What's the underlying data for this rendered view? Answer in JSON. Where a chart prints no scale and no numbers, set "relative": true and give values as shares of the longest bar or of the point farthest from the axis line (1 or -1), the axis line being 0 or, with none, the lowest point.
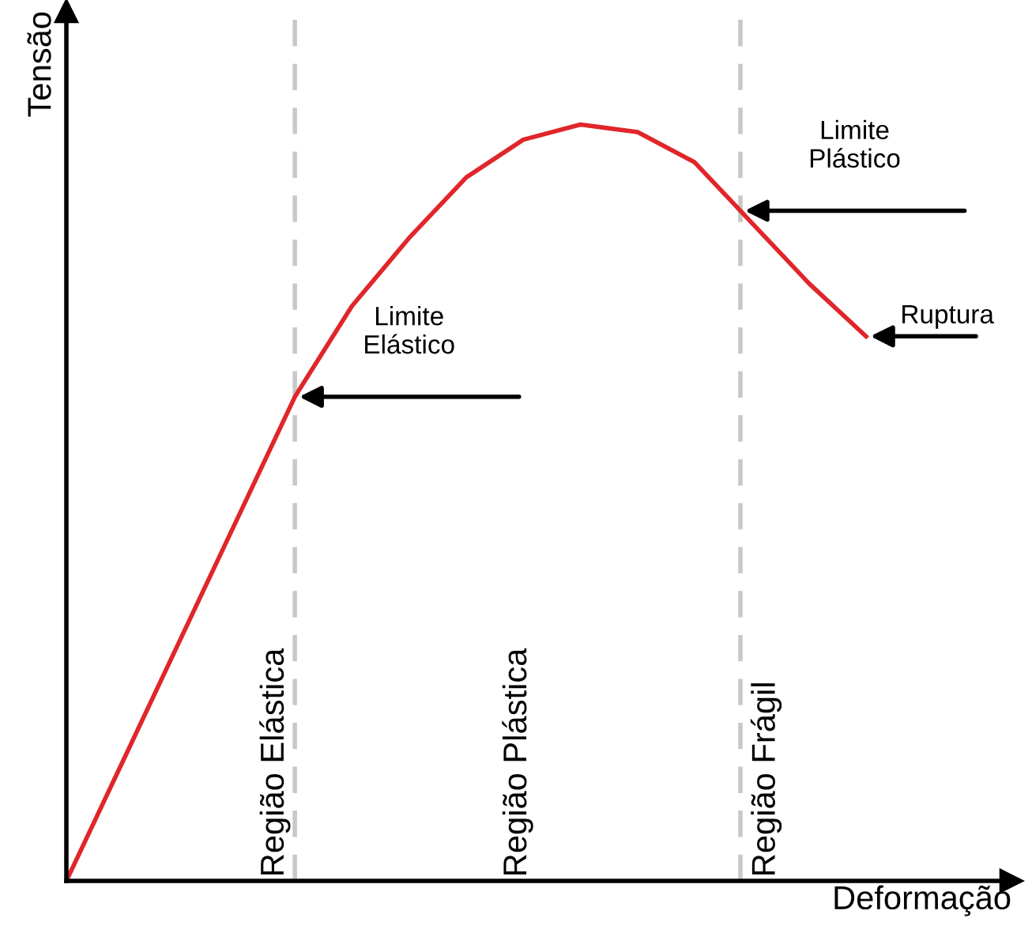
{
  "chart_data": {
    "type": "line",
    "relative": true,
    "xlabel": "Deformação",
    "ylabel": "Tensão",
    "categories": [
      null,
      null,
      null,
      null,
      null,
      null,
      null,
      null,
      null,
      null,
      null,
      null,
      null,
      null,
      null
    ],
    "series": [
      {
        "color": "#e0262a",
        "values": [
          0,
          0.16,
          0.32,
          0.48,
          0.64,
          0.76,
          0.85,
          0.93,
          0.98,
          1.0,
          0.99,
          0.95,
          0.87,
          0.79,
          0.72
        ]
      }
    ],
    "annotations": [
      "Limite\nElástico",
      "Limite\nPlástico",
      "Ruptura",
      "Região Elástica",
      "Região Plástica",
      "Região Frágil"
    ],
    "marker": "none",
    "line_style": "solid"
  }
}
